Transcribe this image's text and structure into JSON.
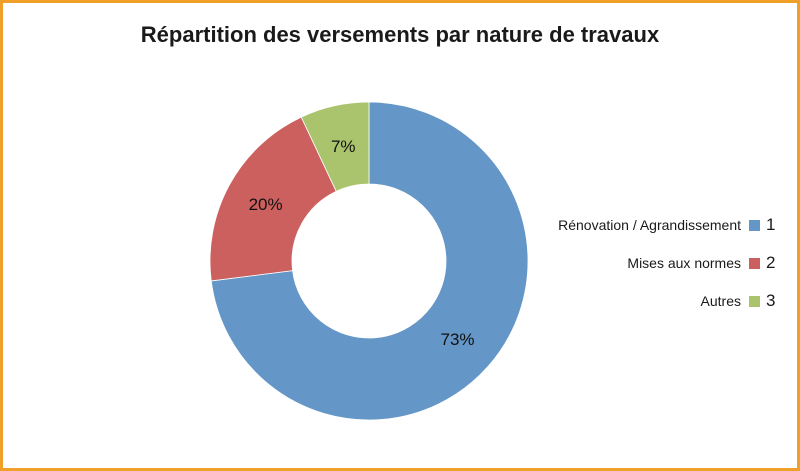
{
  "chart_data": {
    "type": "pie",
    "title": "Répartition des versements par nature de travaux",
    "categories": [
      "Rénovation / Agrandissement",
      "Mises aux normes",
      "Autres"
    ],
    "values": [
      73,
      20,
      7
    ],
    "value_labels": [
      "73%",
      "20%",
      "7%"
    ],
    "legend_numbers": [
      "1",
      "2",
      "3"
    ],
    "colors": [
      "#6496c8",
      "#cc605e",
      "#a9c46c"
    ],
    "donut": true,
    "legend_position": "right"
  },
  "frame": {
    "border_color": "#f0a028"
  }
}
